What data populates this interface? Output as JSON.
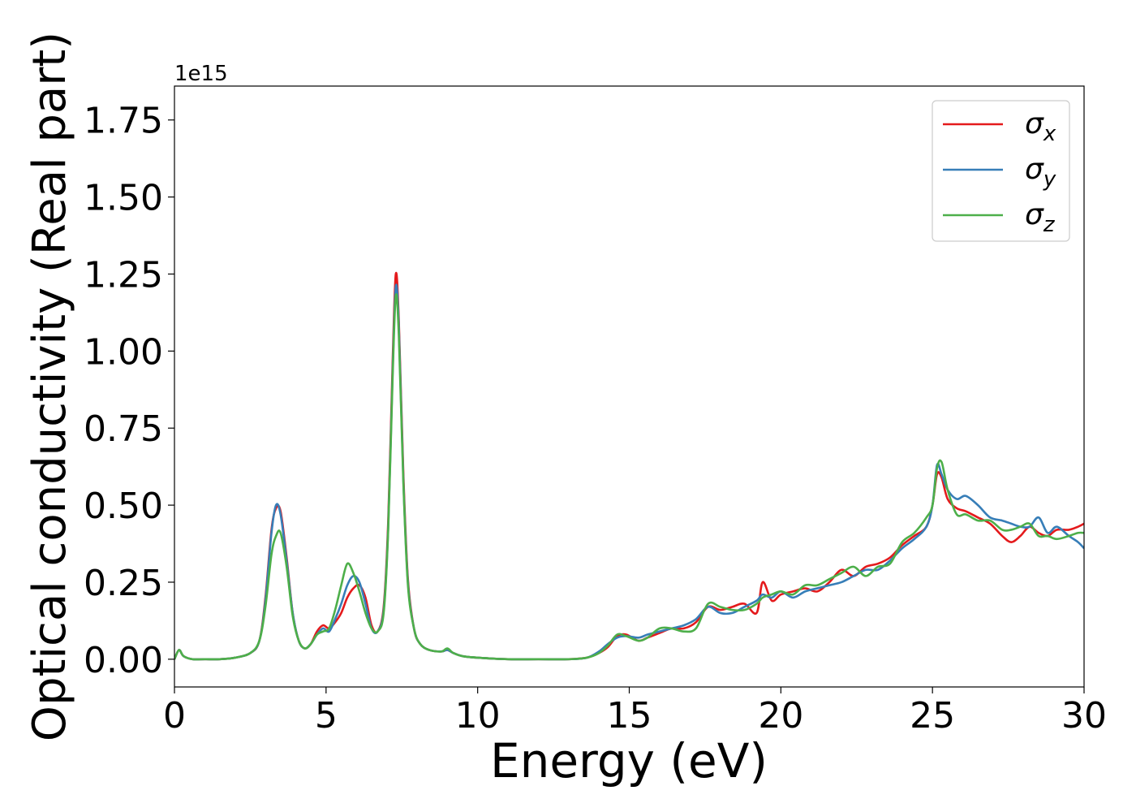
{
  "chart_data": {
    "type": "line",
    "xlabel": "Energy (eV)",
    "ylabel": "Optical conductivity (Real part)",
    "y_offset_text": "1e15",
    "xlim": [
      0,
      30
    ],
    "ylim": [
      -0.09,
      1.86
    ],
    "x_ticks": [
      0,
      5,
      10,
      15,
      20,
      25,
      30
    ],
    "x_tick_labels": [
      "0",
      "5",
      "10",
      "15",
      "20",
      "25",
      "30"
    ],
    "y_ticks": [
      0.0,
      0.25,
      0.5,
      0.75,
      1.0,
      1.25,
      1.5,
      1.75
    ],
    "y_tick_labels": [
      "0.00",
      "0.25",
      "0.50",
      "0.75",
      "1.00",
      "1.25",
      "1.50",
      "1.75"
    ],
    "grid": false,
    "legend_position": "top-right",
    "colors": {
      "sigma_x": "#e41a1c",
      "sigma_y": "#377eb8",
      "sigma_z": "#4daf4a"
    },
    "series": [
      {
        "name": "σx",
        "legend_base": "σ",
        "legend_sub": "x",
        "color": "#e41a1c",
        "x": [
          0,
          0.15,
          0.3,
          0.6,
          1.0,
          1.5,
          2.0,
          2.5,
          2.8,
          3.0,
          3.2,
          3.35,
          3.5,
          3.7,
          3.9,
          4.1,
          4.3,
          4.5,
          4.7,
          4.9,
          5.1,
          5.3,
          5.5,
          5.7,
          5.9,
          6.1,
          6.3,
          6.5,
          6.7,
          6.9,
          7.05,
          7.2,
          7.3,
          7.4,
          7.55,
          7.7,
          7.9,
          8.1,
          8.4,
          8.8,
          9.0,
          9.2,
          9.5,
          10,
          11,
          12,
          13,
          13.6,
          14,
          14.3,
          14.6,
          14.9,
          15.3,
          15.6,
          16.0,
          16.4,
          16.8,
          17.2,
          17.6,
          18.0,
          18.4,
          18.8,
          19.2,
          19.4,
          19.7,
          20.0,
          20.4,
          20.8,
          21.2,
          21.6,
          22.0,
          22.4,
          22.8,
          23.2,
          23.6,
          24.0,
          24.4,
          24.8,
          25.0,
          25.15,
          25.3,
          25.5,
          25.8,
          26.1,
          26.5,
          26.9,
          27.3,
          27.6,
          27.9,
          28.2,
          28.5,
          28.8,
          29.1,
          29.5,
          29.8,
          30.0
        ],
        "values": [
          0.0,
          0.03,
          0.01,
          0.0,
          0.0,
          0.0,
          0.005,
          0.02,
          0.06,
          0.2,
          0.42,
          0.49,
          0.48,
          0.33,
          0.15,
          0.06,
          0.035,
          0.05,
          0.09,
          0.11,
          0.1,
          0.12,
          0.15,
          0.2,
          0.23,
          0.24,
          0.2,
          0.11,
          0.09,
          0.17,
          0.45,
          0.98,
          1.25,
          1.1,
          0.6,
          0.26,
          0.1,
          0.05,
          0.03,
          0.025,
          0.03,
          0.02,
          0.01,
          0.005,
          0.0,
          0.0,
          0.0,
          0.005,
          0.02,
          0.04,
          0.075,
          0.08,
          0.06,
          0.07,
          0.085,
          0.1,
          0.1,
          0.12,
          0.17,
          0.16,
          0.17,
          0.18,
          0.15,
          0.25,
          0.19,
          0.21,
          0.22,
          0.23,
          0.22,
          0.25,
          0.29,
          0.27,
          0.3,
          0.31,
          0.33,
          0.37,
          0.4,
          0.43,
          0.5,
          0.6,
          0.59,
          0.52,
          0.49,
          0.48,
          0.46,
          0.44,
          0.4,
          0.38,
          0.4,
          0.43,
          0.41,
          0.4,
          0.42,
          0.42,
          0.43,
          0.44
        ]
      },
      {
        "name": "σy",
        "legend_base": "σ",
        "legend_sub": "y",
        "color": "#377eb8",
        "x": [
          0,
          0.15,
          0.3,
          0.6,
          1.0,
          1.5,
          2.0,
          2.5,
          2.8,
          3.0,
          3.2,
          3.35,
          3.5,
          3.7,
          3.9,
          4.1,
          4.3,
          4.5,
          4.7,
          4.9,
          5.1,
          5.3,
          5.5,
          5.7,
          5.9,
          6.1,
          6.3,
          6.5,
          6.7,
          6.9,
          7.05,
          7.2,
          7.3,
          7.4,
          7.55,
          7.7,
          7.9,
          8.1,
          8.4,
          8.8,
          9.0,
          9.2,
          9.5,
          10,
          11,
          12,
          13,
          13.6,
          14,
          14.3,
          14.6,
          14.9,
          15.3,
          15.6,
          16.0,
          16.4,
          16.8,
          17.2,
          17.6,
          18.0,
          18.4,
          18.8,
          19.2,
          19.4,
          19.7,
          20.0,
          20.4,
          20.8,
          21.2,
          21.6,
          22.0,
          22.4,
          22.8,
          23.2,
          23.6,
          24.0,
          24.4,
          24.8,
          25.0,
          25.15,
          25.3,
          25.5,
          25.8,
          26.1,
          26.5,
          26.9,
          27.3,
          27.6,
          27.9,
          28.2,
          28.5,
          28.8,
          29.1,
          29.5,
          29.8,
          30.0
        ],
        "values": [
          0.0,
          0.03,
          0.01,
          0.0,
          0.0,
          0.0,
          0.005,
          0.02,
          0.06,
          0.19,
          0.41,
          0.5,
          0.47,
          0.32,
          0.15,
          0.06,
          0.035,
          0.05,
          0.08,
          0.1,
          0.09,
          0.13,
          0.18,
          0.24,
          0.27,
          0.25,
          0.18,
          0.1,
          0.09,
          0.16,
          0.43,
          0.95,
          1.21,
          1.08,
          0.58,
          0.25,
          0.1,
          0.05,
          0.03,
          0.025,
          0.03,
          0.02,
          0.01,
          0.005,
          0.0,
          0.0,
          0.0,
          0.005,
          0.025,
          0.05,
          0.07,
          0.075,
          0.07,
          0.08,
          0.09,
          0.1,
          0.11,
          0.13,
          0.17,
          0.15,
          0.15,
          0.17,
          0.19,
          0.21,
          0.2,
          0.22,
          0.2,
          0.22,
          0.23,
          0.24,
          0.25,
          0.27,
          0.29,
          0.29,
          0.32,
          0.36,
          0.39,
          0.43,
          0.5,
          0.63,
          0.6,
          0.55,
          0.52,
          0.53,
          0.5,
          0.46,
          0.45,
          0.44,
          0.43,
          0.43,
          0.46,
          0.41,
          0.43,
          0.4,
          0.38,
          0.36
        ]
      },
      {
        "name": "σz",
        "legend_base": "σ",
        "legend_sub": "z",
        "color": "#4daf4a",
        "x": [
          0,
          0.15,
          0.3,
          0.6,
          1.0,
          1.5,
          2.0,
          2.5,
          2.8,
          3.0,
          3.2,
          3.35,
          3.5,
          3.7,
          3.9,
          4.1,
          4.3,
          4.5,
          4.7,
          4.9,
          5.1,
          5.3,
          5.5,
          5.7,
          5.9,
          6.1,
          6.3,
          6.5,
          6.7,
          6.9,
          7.05,
          7.2,
          7.3,
          7.4,
          7.55,
          7.7,
          7.9,
          8.1,
          8.4,
          8.8,
          9.0,
          9.2,
          9.5,
          10,
          11,
          12,
          13,
          13.6,
          14,
          14.3,
          14.6,
          14.9,
          15.3,
          15.6,
          16.0,
          16.4,
          16.8,
          17.2,
          17.6,
          18.0,
          18.4,
          18.8,
          19.2,
          19.4,
          19.7,
          20.0,
          20.4,
          20.8,
          21.2,
          21.6,
          22.0,
          22.4,
          22.8,
          23.2,
          23.6,
          24.0,
          24.4,
          24.8,
          25.0,
          25.15,
          25.3,
          25.5,
          25.8,
          26.1,
          26.5,
          26.9,
          27.3,
          27.6,
          27.9,
          28.2,
          28.5,
          28.8,
          29.1,
          29.5,
          29.8,
          30.0
        ],
        "values": [
          0.0,
          0.03,
          0.01,
          0.0,
          0.0,
          0.0,
          0.005,
          0.02,
          0.06,
          0.17,
          0.34,
          0.4,
          0.41,
          0.3,
          0.14,
          0.06,
          0.035,
          0.05,
          0.08,
          0.09,
          0.1,
          0.16,
          0.24,
          0.31,
          0.28,
          0.22,
          0.15,
          0.1,
          0.09,
          0.15,
          0.42,
          0.93,
          1.18,
          1.05,
          0.57,
          0.24,
          0.1,
          0.05,
          0.03,
          0.025,
          0.035,
          0.02,
          0.01,
          0.005,
          0.0,
          0.0,
          0.0,
          0.005,
          0.02,
          0.045,
          0.08,
          0.075,
          0.06,
          0.07,
          0.1,
          0.1,
          0.09,
          0.1,
          0.18,
          0.17,
          0.16,
          0.16,
          0.18,
          0.2,
          0.21,
          0.22,
          0.21,
          0.24,
          0.24,
          0.26,
          0.28,
          0.3,
          0.27,
          0.3,
          0.31,
          0.38,
          0.41,
          0.46,
          0.5,
          0.62,
          0.64,
          0.55,
          0.47,
          0.47,
          0.45,
          0.45,
          0.42,
          0.42,
          0.43,
          0.44,
          0.4,
          0.4,
          0.39,
          0.4,
          0.41,
          0.41
        ]
      }
    ]
  }
}
